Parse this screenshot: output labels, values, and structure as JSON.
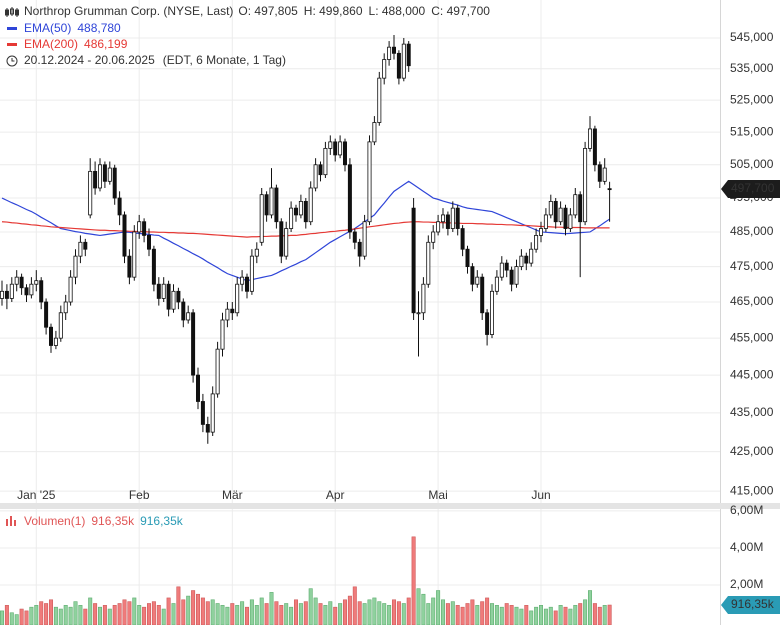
{
  "chart_data": {
    "type": "candlestick",
    "title": "Northrop Grumman Corp. (NYSE, Last)",
    "ohlc_labels": [
      "O: 497,805",
      "H: 499,860",
      "L: 488,000",
      "C: 497,700"
    ],
    "period": "20.12.2024 - 20.06.2025",
    "period_note": "(EDT, 6 Monate, 1 Tag)",
    "last_price_label": "497,700",
    "ylog": true,
    "grid": true,
    "up_color": "#ffffff",
    "down_color": "#111111",
    "ylim": [
      413.8,
      557.6
    ],
    "yticks": [
      {
        "value": 415,
        "label": "415,000"
      },
      {
        "value": 425,
        "label": "425,000"
      },
      {
        "value": 435,
        "label": "435,000"
      },
      {
        "value": 445,
        "label": "445,000"
      },
      {
        "value": 455,
        "label": "455,000"
      },
      {
        "value": 465,
        "label": "465,000"
      },
      {
        "value": 475,
        "label": "475,000"
      },
      {
        "value": 485,
        "label": "485,000"
      },
      {
        "value": 495,
        "label": "495,000"
      },
      {
        "value": 505,
        "label": "505,000"
      },
      {
        "value": 515,
        "label": "515,000"
      },
      {
        "value": 525,
        "label": "525,000"
      },
      {
        "value": 535,
        "label": "535,000"
      },
      {
        "value": 545,
        "label": "545,000"
      }
    ],
    "categories": [
      null,
      null,
      null,
      null,
      null,
      null,
      null,
      "Jan '25",
      null,
      null,
      null,
      null,
      null,
      null,
      null,
      null,
      null,
      null,
      null,
      null,
      null,
      null,
      null,
      null,
      null,
      null,
      null,
      null,
      "Feb",
      null,
      null,
      null,
      null,
      null,
      null,
      null,
      null,
      null,
      null,
      null,
      null,
      null,
      null,
      null,
      null,
      null,
      null,
      "Mär",
      null,
      null,
      null,
      null,
      null,
      null,
      null,
      null,
      null,
      null,
      null,
      null,
      null,
      null,
      null,
      null,
      null,
      null,
      null,
      null,
      "Apr",
      null,
      null,
      null,
      null,
      null,
      null,
      null,
      null,
      null,
      null,
      null,
      null,
      null,
      null,
      null,
      null,
      null,
      null,
      null,
      null,
      "Mai",
      null,
      null,
      null,
      null,
      null,
      null,
      null,
      null,
      null,
      null,
      null,
      null,
      null,
      null,
      null,
      null,
      null,
      null,
      null,
      null,
      "Jun",
      null,
      null,
      null,
      null,
      null,
      null,
      null,
      null,
      null,
      null,
      null,
      null,
      null,
      null
    ],
    "ohlc": [
      [
        466,
        471,
        464,
        468
      ],
      [
        468,
        470,
        463,
        466
      ],
      [
        466,
        472,
        465,
        470
      ],
      [
        470,
        474,
        468,
        472
      ],
      [
        472,
        473,
        467,
        469
      ],
      [
        469,
        470,
        465,
        467
      ],
      [
        467,
        472,
        466,
        470
      ],
      [
        470,
        474,
        468,
        471
      ],
      [
        471,
        472,
        463,
        465
      ],
      [
        465,
        466,
        456,
        458
      ],
      [
        458,
        459,
        451,
        453
      ],
      [
        453,
        457,
        452,
        455
      ],
      [
        455,
        464,
        454,
        462
      ],
      [
        462,
        467,
        460,
        465
      ],
      [
        465,
        474,
        464,
        472
      ],
      [
        472,
        480,
        470,
        478
      ],
      [
        478,
        484,
        476,
        482
      ],
      [
        482,
        483,
        478,
        480
      ],
      [
        490,
        507,
        489,
        503
      ],
      [
        503,
        506,
        496,
        498
      ],
      [
        498,
        507,
        497,
        505
      ],
      [
        505,
        506,
        498,
        500
      ],
      [
        500,
        506,
        499,
        504
      ],
      [
        504,
        505,
        493,
        495
      ],
      [
        495,
        497,
        487,
        490
      ],
      [
        490,
        491,
        476,
        478
      ],
      [
        478,
        480,
        470,
        472
      ],
      [
        472,
        487,
        471,
        485
      ],
      [
        485,
        490,
        483,
        488
      ],
      [
        488,
        489,
        482,
        484
      ],
      [
        484,
        486,
        478,
        480
      ],
      [
        480,
        481,
        468,
        470
      ],
      [
        470,
        472,
        464,
        466
      ],
      [
        466,
        472,
        465,
        470
      ],
      [
        470,
        471,
        461,
        463
      ],
      [
        463,
        470,
        462,
        468
      ],
      [
        468,
        469,
        463,
        465
      ],
      [
        465,
        466,
        458,
        460
      ],
      [
        460,
        464,
        459,
        462
      ],
      [
        462,
        463,
        443,
        445
      ],
      [
        445,
        447,
        436,
        438
      ],
      [
        438,
        440,
        430,
        432
      ],
      [
        432,
        434,
        427,
        430
      ],
      [
        430,
        442,
        429,
        440
      ],
      [
        440,
        454,
        439,
        452
      ],
      [
        452,
        462,
        450,
        460
      ],
      [
        460,
        465,
        458,
        463
      ],
      [
        463,
        465,
        460,
        462
      ],
      [
        462,
        472,
        461,
        470
      ],
      [
        470,
        474,
        468,
        472
      ],
      [
        472,
        473,
        466,
        468
      ],
      [
        468,
        480,
        467,
        478
      ],
      [
        478,
        482,
        476,
        480
      ],
      [
        482,
        498,
        481,
        496
      ],
      [
        496,
        497,
        488,
        490
      ],
      [
        490,
        504,
        489,
        498
      ],
      [
        498,
        499,
        486,
        488
      ],
      [
        488,
        489,
        476,
        478
      ],
      [
        478,
        488,
        477,
        486
      ],
      [
        486,
        494,
        485,
        492
      ],
      [
        492,
        493,
        488,
        490
      ],
      [
        490,
        496,
        489,
        494
      ],
      [
        494,
        495,
        486,
        488
      ],
      [
        488,
        500,
        487,
        498
      ],
      [
        498,
        507,
        497,
        505
      ],
      [
        505,
        506,
        500,
        502
      ],
      [
        502,
        512,
        501,
        510
      ],
      [
        510,
        514,
        508,
        512
      ],
      [
        512,
        513,
        506,
        508
      ],
      [
        508,
        514,
        507,
        512
      ],
      [
        512,
        513,
        503,
        505
      ],
      [
        505,
        507,
        483,
        485
      ],
      [
        485,
        486,
        480,
        482
      ],
      [
        482,
        483,
        475,
        478
      ],
      [
        478,
        490,
        477,
        488
      ],
      [
        488,
        514,
        487,
        512
      ],
      [
        512,
        520,
        511,
        518
      ],
      [
        518,
        534,
        517,
        532
      ],
      [
        532,
        540,
        530,
        538
      ],
      [
        538,
        544,
        536,
        542
      ],
      [
        542,
        546,
        538,
        540
      ],
      [
        540,
        541,
        530,
        532
      ],
      [
        532,
        545,
        531,
        543
      ],
      [
        543,
        544,
        534,
        536
      ],
      [
        492,
        495,
        460,
        462
      ],
      [
        462,
        468,
        450,
        462
      ],
      [
        462,
        472,
        460,
        470
      ],
      [
        470,
        484,
        469,
        482
      ],
      [
        482,
        487,
        480,
        485
      ],
      [
        485,
        490,
        484,
        488
      ],
      [
        488,
        492,
        486,
        490
      ],
      [
        490,
        491,
        484,
        486
      ],
      [
        486,
        494,
        485,
        492
      ],
      [
        492,
        493,
        484,
        486
      ],
      [
        486,
        487,
        478,
        480
      ],
      [
        480,
        481,
        473,
        475
      ],
      [
        475,
        476,
        468,
        470
      ],
      [
        470,
        474,
        469,
        472
      ],
      [
        472,
        473,
        460,
        462
      ],
      [
        462,
        463,
        453,
        456
      ],
      [
        456,
        470,
        455,
        468
      ],
      [
        468,
        474,
        467,
        472
      ],
      [
        472,
        478,
        471,
        476
      ],
      [
        476,
        477,
        472,
        474
      ],
      [
        474,
        475,
        468,
        470
      ],
      [
        470,
        477,
        469,
        475
      ],
      [
        475,
        480,
        474,
        478
      ],
      [
        478,
        479,
        474,
        476
      ],
      [
        476,
        482,
        475,
        480
      ],
      [
        480,
        486,
        479,
        484
      ],
      [
        484,
        488,
        482,
        486
      ],
      [
        486,
        492,
        485,
        490
      ],
      [
        490,
        496,
        489,
        494
      ],
      [
        494,
        495,
        486,
        488
      ],
      [
        488,
        494,
        487,
        492
      ],
      [
        492,
        493,
        484,
        486
      ],
      [
        486,
        492,
        485,
        490
      ],
      [
        490,
        498,
        489,
        496
      ],
      [
        496,
        497,
        472,
        488
      ],
      [
        488,
        512,
        487,
        510
      ],
      [
        510,
        520,
        509,
        516
      ],
      [
        516,
        517,
        503,
        505
      ],
      [
        505,
        506,
        498,
        500
      ],
      [
        500,
        507,
        499,
        504
      ],
      [
        497.805,
        499.86,
        488,
        497.7
      ]
    ],
    "series": [
      {
        "name": "EMA(50)",
        "color": "#2f45d8",
        "last_label": "488,780",
        "values": [
          495,
          494.3,
          493.6,
          493,
          492.3,
          491.6,
          491,
          490.2,
          489.3,
          488.5,
          487.7,
          486.8,
          486,
          485.7,
          485.4,
          485.1,
          484.9,
          484.6,
          484.4,
          484.2,
          484,
          484.2,
          484.4,
          484.6,
          484.8,
          485,
          484.9,
          484.7,
          484.6,
          484.4,
          484.3,
          484.1,
          484,
          483.2,
          482.5,
          481.7,
          481,
          480.2,
          479.5,
          478.7,
          478,
          477.2,
          476.3,
          475.5,
          474.7,
          473.8,
          473,
          472.5,
          472,
          471.5,
          471,
          471.3,
          471.6,
          471.9,
          472.2,
          472.5,
          473.1,
          473.8,
          474.4,
          475.1,
          475.7,
          476.4,
          477,
          478,
          479,
          480,
          481,
          482,
          482.8,
          483.6,
          484.4,
          485.2,
          486,
          487,
          488,
          489,
          490,
          491.8,
          493.5,
          495.3,
          497,
          498,
          499,
          500,
          499,
          498,
          497,
          496,
          495,
          494.6,
          494.1,
          493.7,
          493.3,
          492.9,
          492.4,
          492,
          491.8,
          491.6,
          491.4,
          491.2,
          491,
          490.4,
          489.8,
          489.2,
          488.6,
          488,
          487.4,
          486.8,
          486.2,
          485.6,
          485,
          484.9,
          484.8,
          484.7,
          484.6,
          484.5,
          484.6,
          484.7,
          484.8,
          484.9,
          485,
          485.9,
          486.8,
          487.8,
          488.78
        ]
      },
      {
        "name": "EMA(200)",
        "color": "#e53935",
        "last_label": "486,199",
        "values": [
          488,
          487.9,
          487.7,
          487.6,
          487.4,
          487.3,
          487.1,
          487,
          486.8,
          486.7,
          486.5,
          486.4,
          486.3,
          486.2,
          486.1,
          486,
          485.9,
          485.8,
          485.7,
          485.6,
          485.5,
          485.5,
          485.4,
          485.4,
          485.3,
          485.3,
          485.2,
          485.2,
          485.1,
          485.1,
          485,
          485,
          484.9,
          484.9,
          484.8,
          484.8,
          484.7,
          484.7,
          484.6,
          484.6,
          484.5,
          484.4,
          484.3,
          484.2,
          484.1,
          484,
          483.9,
          483.8,
          483.7,
          483.6,
          483.5,
          483.6,
          483.6,
          483.7,
          483.7,
          483.8,
          483.8,
          483.9,
          483.9,
          484,
          484,
          484.2,
          484.3,
          484.5,
          484.6,
          484.8,
          484.9,
          485.1,
          485.2,
          485.4,
          485.5,
          485.7,
          485.9,
          486.1,
          486.3,
          486.5,
          486.7,
          486.9,
          487.1,
          487.3,
          487.5,
          487.6,
          487.8,
          487.9,
          488,
          488,
          487.9,
          487.9,
          487.8,
          487.8,
          487.7,
          487.7,
          487.6,
          487.6,
          487.5,
          487.5,
          487.5,
          487.4,
          487.4,
          487.3,
          487.3,
          487.2,
          487.2,
          487.1,
          487.1,
          487,
          486.9,
          486.9,
          486.8,
          486.7,
          486.6,
          486.6,
          486.5,
          486.4,
          486.4,
          486.3,
          486.3,
          486.3,
          486.3,
          486.2,
          486.2,
          486.2,
          486.2,
          486.2,
          486.199
        ]
      }
    ],
    "volume": {
      "name": "Volumen(1)",
      "last_label": "916,35k",
      "up_color": "#8fd19e",
      "down_color": "#ef7b7b",
      "tag_color": "#2a9bb5",
      "ylim": [
        0,
        6.32
      ],
      "yticks": [
        {
          "value": 2,
          "label": "2,00M"
        },
        {
          "value": 4,
          "label": "4,00M"
        },
        {
          "value": 6,
          "label": "6,00M"
        }
      ],
      "values": [
        0.6,
        0.9,
        0.5,
        0.4,
        0.7,
        0.6,
        0.8,
        0.9,
        1.1,
        1.0,
        1.2,
        0.8,
        0.7,
        0.9,
        0.8,
        1.1,
        0.9,
        0.7,
        1.3,
        1.0,
        0.8,
        0.9,
        0.7,
        0.9,
        1.0,
        1.2,
        1.1,
        1.3,
        0.9,
        0.8,
        1.0,
        1.1,
        0.9,
        0.7,
        1.3,
        1.0,
        1.9,
        1.2,
        1.4,
        1.7,
        1.5,
        1.3,
        1.1,
        1.2,
        1.0,
        0.9,
        0.8,
        1.0,
        0.9,
        1.1,
        0.8,
        1.2,
        0.9,
        1.3,
        1.0,
        1.6,
        1.1,
        0.9,
        1.0,
        0.8,
        1.2,
        1.0,
        1.1,
        1.8,
        1.3,
        1.0,
        0.9,
        1.1,
        0.8,
        1.0,
        1.2,
        1.4,
        1.9,
        1.1,
        1.0,
        1.2,
        1.3,
        1.1,
        1.0,
        0.9,
        1.2,
        1.1,
        1.0,
        1.3,
        4.6,
        1.8,
        1.5,
        1.0,
        1.3,
        1.7,
        1.2,
        1.0,
        1.1,
        0.9,
        0.8,
        1.0,
        1.2,
        0.9,
        1.1,
        1.3,
        1.0,
        0.9,
        0.8,
        1.0,
        0.9,
        0.8,
        0.7,
        0.9,
        0.6,
        0.8,
        0.9,
        0.7,
        0.8,
        0.6,
        0.9,
        0.8,
        0.7,
        0.9,
        1.0,
        1.2,
        1.7,
        1.0,
        0.8,
        0.9,
        0.91635
      ]
    }
  }
}
